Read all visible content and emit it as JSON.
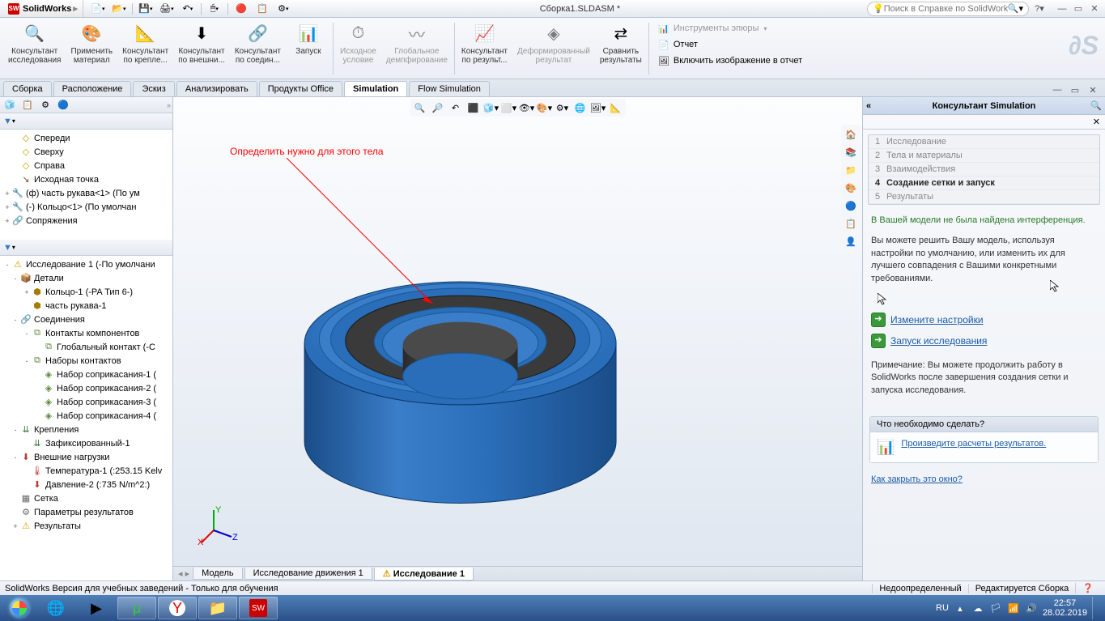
{
  "titlebar": {
    "app_name": "SolidWorks",
    "doc_title": "Сборка1.SLDASM *",
    "search_placeholder": "Поиск в Справке по SolidWorks"
  },
  "ribbon": {
    "items": [
      {
        "label": "Консультант\nисследования",
        "icon": "🔍"
      },
      {
        "label": "Применить\nматериал",
        "icon": "🎨"
      },
      {
        "label": "Консультант\nпо крепле...",
        "icon": "📐"
      },
      {
        "label": "Консультант\nпо внешни...",
        "icon": "⬇"
      },
      {
        "label": "Консультант\nпо соедин...",
        "icon": "🔗"
      },
      {
        "label": "Запуск",
        "icon": "📊"
      },
      {
        "label": "Исходное\nусловие",
        "icon": "⏱",
        "dis": true
      },
      {
        "label": "Глобальное\nдемпфирование",
        "icon": "〰",
        "dis": true
      },
      {
        "label": "Консультант\nпо результ...",
        "icon": "📈"
      },
      {
        "label": "Деформированный\nрезультат",
        "icon": "◈",
        "dis": true
      },
      {
        "label": "Сравнить\nрезультаты",
        "icon": "⇄"
      }
    ],
    "side": [
      {
        "label": "Инструменты эпюры",
        "icon": "📊",
        "dis": true
      },
      {
        "label": "Отчет",
        "icon": "📄"
      },
      {
        "label": "Включить изображение в отчет",
        "icon": "🖼"
      }
    ]
  },
  "tabs": [
    "Сборка",
    "Расположение",
    "Эскиз",
    "Анализировать",
    "Продукты Office",
    "Simulation",
    "Flow Simulation"
  ],
  "tabs_active": 5,
  "tree1": [
    {
      "ind": 1,
      "icon": "◇",
      "label": "Спереди",
      "c": "#c4a000"
    },
    {
      "ind": 1,
      "icon": "◇",
      "label": "Сверху",
      "c": "#c4a000"
    },
    {
      "ind": 1,
      "icon": "◇",
      "label": "Справа",
      "c": "#c4a000"
    },
    {
      "ind": 1,
      "icon": "↘",
      "label": "Исходная точка",
      "c": "#8b4513"
    },
    {
      "ind": 0,
      "exp": "+",
      "icon": "🔧",
      "label": "(ф) часть рукава<1> (По ум",
      "c": "#c4a000"
    },
    {
      "ind": 0,
      "exp": "+",
      "icon": "🔧",
      "label": "(-) Кольцо<1> (По умолчан",
      "c": "#c4a000"
    },
    {
      "ind": 0,
      "exp": "+",
      "icon": "🔗",
      "label": "Сопряжения",
      "c": "#666"
    }
  ],
  "tree2": [
    {
      "ind": 0,
      "exp": "-",
      "icon": "⚠",
      "label": "Исследование 1 (-По умолчани",
      "c": "#d4a000"
    },
    {
      "ind": 1,
      "exp": "-",
      "icon": "📦",
      "label": "Детали",
      "c": "#8b7500"
    },
    {
      "ind": 2,
      "exp": "+",
      "icon": "⬢",
      "label": "Кольцо-1 (-PA Тип 6-)",
      "c": "#a67c00"
    },
    {
      "ind": 2,
      "icon": "⬢",
      "label": "часть рукава-1",
      "c": "#a67c00"
    },
    {
      "ind": 1,
      "exp": "-",
      "icon": "🔗",
      "label": "Соединения",
      "c": "#5a8a3a"
    },
    {
      "ind": 2,
      "exp": "-",
      "icon": "⧉",
      "label": "Контакты компонентов",
      "c": "#5a8a3a"
    },
    {
      "ind": 3,
      "icon": "⧉",
      "label": "Глобальный контакт (-С",
      "c": "#5a8a3a"
    },
    {
      "ind": 2,
      "exp": "-",
      "icon": "⧉",
      "label": "Наборы контактов",
      "c": "#5a8a3a"
    },
    {
      "ind": 3,
      "icon": "◈",
      "label": "Набор соприкасания-1 (",
      "c": "#5a8a3a"
    },
    {
      "ind": 3,
      "icon": "◈",
      "label": "Набор соприкасания-2 (",
      "c": "#5a8a3a"
    },
    {
      "ind": 3,
      "icon": "◈",
      "label": "Набор соприкасания-3 (",
      "c": "#5a8a3a"
    },
    {
      "ind": 3,
      "icon": "◈",
      "label": "Набор соприкасания-4 (",
      "c": "#5a8a3a"
    },
    {
      "ind": 1,
      "exp": "-",
      "icon": "⇊",
      "label": "Крепления",
      "c": "#3a7a3a"
    },
    {
      "ind": 2,
      "icon": "⇊",
      "label": "Зафиксированный-1",
      "c": "#3a7a3a"
    },
    {
      "ind": 1,
      "exp": "-",
      "icon": "⬇",
      "label": "Внешние нагрузки",
      "c": "#b83a3a"
    },
    {
      "ind": 2,
      "icon": "🌡",
      "label": "Температура-1 (:253.15 Kelv",
      "c": "#b83a3a"
    },
    {
      "ind": 2,
      "icon": "⬇",
      "label": "Давление-2 (:735 N/m^2:)",
      "c": "#b83a3a"
    },
    {
      "ind": 1,
      "icon": "▦",
      "label": "Сетка",
      "c": "#666"
    },
    {
      "ind": 1,
      "icon": "⚙",
      "label": "Параметры результатов",
      "c": "#666"
    },
    {
      "ind": 1,
      "exp": "+",
      "icon": "⚠",
      "label": "Результаты",
      "c": "#d4a000"
    }
  ],
  "annotation": "Определить нужно для этого тела",
  "btabs": [
    "Модель",
    "Исследование движения 1",
    "Исследование 1"
  ],
  "btabs_active": 2,
  "consultant": {
    "title": "Консультант Simulation",
    "steps": [
      "Исследование",
      "Тела и материалы",
      "Взаимодействия",
      "Создание сетки и запуск",
      "Результаты"
    ],
    "step_active": 3,
    "ok_msg": "В Вашей модели не была найдена интерференция.",
    "body1": "Вы можете решить Вашу модель, используя настройки по умолчанию, или изменить их для лучшего совпадения с Вашими конкретными требованиями.",
    "action1": "Измените настройки",
    "action2": "Запуск исследования",
    "note": "Примечание: Вы можете продолжить работу в SolidWorks после завершения создания сетки и запуска исследования.",
    "box_title": "Что необходимо сделать?",
    "box_link": "Произведите расчеты результатов.",
    "footer_link": "Как закрыть это окно?"
  },
  "statusbar": {
    "left": "SolidWorks Версия для учебных заведений - Только для обучения",
    "p1": "Недоопределенный",
    "p2": "Редактируется Сборка"
  },
  "taskbar": {
    "lang": "RU",
    "time": "22:57",
    "date": "28.02.2019"
  },
  "colors": {
    "part_blue": "#2a6db8",
    "part_blue_lt": "#4a8dd8",
    "part_dk": "#3a3a3a"
  }
}
